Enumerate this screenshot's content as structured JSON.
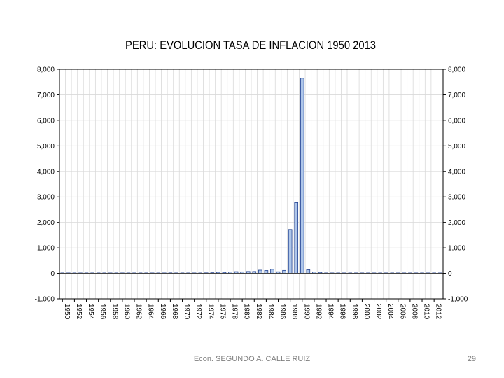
{
  "slide": {
    "author": "Econ. SEGUNDO A. CALLE RUIZ",
    "page_number": "29"
  },
  "chart_data": {
    "type": "bar",
    "title": "PERU: EVOLUCION TASA DE INFLACION 1950 2013",
    "xlabel": "",
    "ylabel": "",
    "ylim": [
      -1000,
      8000
    ],
    "yticks": [
      -1000,
      0,
      1000,
      2000,
      3000,
      4000,
      5000,
      6000,
      7000,
      8000
    ],
    "ytick_labels": [
      "-1,000",
      "0",
      "1,000",
      "2,000",
      "3,000",
      "4,000",
      "5,000",
      "6,000",
      "7,000",
      "8,000"
    ],
    "xtick_labels": [
      "1950",
      "1952",
      "1954",
      "1956",
      "1958",
      "1960",
      "1962",
      "1964",
      "1966",
      "1968",
      "1970",
      "1972",
      "1974",
      "1976",
      "1978",
      "1980",
      "1982",
      "1984",
      "1986",
      "1988",
      "1990",
      "1992",
      "1994",
      "1996",
      "1998",
      "2000",
      "2002",
      "2004",
      "2006",
      "2008",
      "2010",
      "2012"
    ],
    "categories": [
      "1950",
      "1951",
      "1952",
      "1953",
      "1954",
      "1955",
      "1956",
      "1957",
      "1958",
      "1959",
      "1960",
      "1961",
      "1962",
      "1963",
      "1964",
      "1965",
      "1966",
      "1967",
      "1968",
      "1969",
      "1970",
      "1971",
      "1972",
      "1973",
      "1974",
      "1975",
      "1976",
      "1977",
      "1978",
      "1979",
      "1980",
      "1981",
      "1982",
      "1983",
      "1984",
      "1985",
      "1986",
      "1987",
      "1988",
      "1989",
      "1990",
      "1991",
      "1992",
      "1993",
      "1994",
      "1995",
      "1996",
      "1997",
      "1998",
      "1999",
      "2000",
      "2001",
      "2002",
      "2003",
      "2004",
      "2005",
      "2006",
      "2007",
      "2008",
      "2009",
      "2010",
      "2011",
      "2012",
      "2013"
    ],
    "values": [
      10,
      11,
      7,
      9,
      5,
      5,
      5,
      7,
      8,
      13,
      8,
      6,
      7,
      6,
      10,
      16,
      9,
      10,
      19,
      6,
      5,
      7,
      7,
      14,
      19,
      24,
      44,
      38,
      58,
      67,
      60,
      73,
      73,
      125,
      111,
      158,
      63,
      115,
      1722,
      2775,
      7650,
      139,
      57,
      40,
      15,
      10,
      12,
      9,
      7,
      4,
      4,
      0,
      2,
      3,
      3,
      2,
      1,
      4,
      7,
      0,
      2,
      5,
      3,
      3
    ],
    "grid": true,
    "legend": "none",
    "colors": {
      "bar_fill": "#aec6ea",
      "bar_stroke": "#1f3f8f",
      "grid": "#d9d9d9",
      "axis": "#000000"
    }
  }
}
